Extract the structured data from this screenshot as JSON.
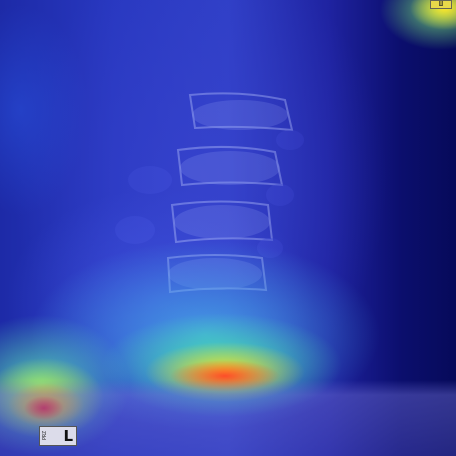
{
  "image": {
    "description_type": "xray-heatmap-overlay",
    "colormap": "jet"
  },
  "markers": {
    "bottom_left_code": "PRZ",
    "bottom_left_letter": "L",
    "top_right_text": "Ш"
  },
  "colors": {
    "background_dark": "#060a5a",
    "heat_mid": "#2f3fc6",
    "hot_red": "#e61e28",
    "hot_yellow": "#ffd71e",
    "hot_cyan": "#46ebaa"
  }
}
